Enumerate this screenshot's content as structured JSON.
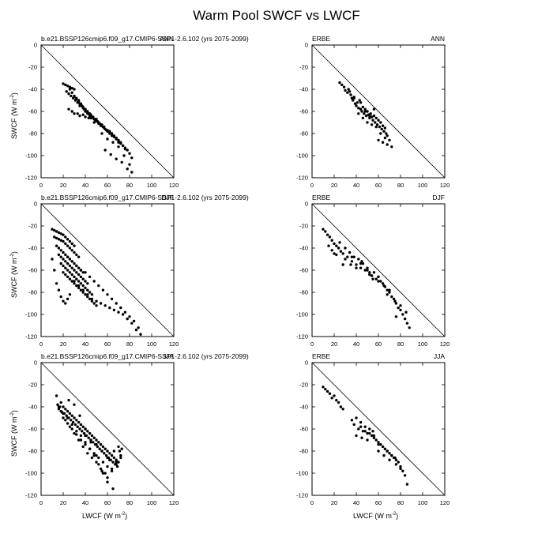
{
  "title": "Warm Pool SWCF vs LWCF",
  "axes": {
    "xlabel": "LWCF (W m",
    "ylabel": "SWCF (W m",
    "unit_exponent": "-2",
    "xlabel_suffix": ")",
    "ylabel_suffix": ")"
  },
  "chart_data": [
    {
      "type": "scatter",
      "left_title": "b.e21.BSSP126cmip6.f09_g17.CMIP6-SSP1-2.6.102 (yrs 2075-2099)",
      "right_title": "ANN",
      "xlim": [
        0,
        120
      ],
      "ylim": [
        -120,
        0
      ],
      "xticks": [
        0,
        20,
        40,
        60,
        80,
        100,
        120
      ],
      "yticks": [
        0,
        -20,
        -40,
        -60,
        -80,
        -100,
        -120
      ],
      "reference_line": [
        [
          0,
          0
        ],
        [
          120,
          -120
        ]
      ],
      "x": [
        20,
        22,
        24,
        26,
        28,
        30,
        23,
        25,
        27,
        29,
        31,
        33,
        35,
        26,
        28,
        30,
        32,
        34,
        36,
        38,
        40,
        30,
        32,
        34,
        36,
        38,
        40,
        42,
        44,
        35,
        37,
        39,
        41,
        43,
        45,
        47,
        49,
        40,
        42,
        44,
        46,
        48,
        50,
        52,
        54,
        45,
        47,
        49,
        51,
        53,
        55,
        57,
        59,
        50,
        52,
        54,
        56,
        58,
        60,
        62,
        64,
        55,
        57,
        60,
        62,
        64,
        66,
        68,
        70,
        62,
        64,
        66,
        68,
        70,
        72,
        74,
        76,
        68,
        70,
        72,
        74,
        76,
        78,
        80,
        82,
        25,
        30,
        35,
        40,
        45,
        50,
        28,
        33,
        38,
        43,
        48,
        55,
        60,
        65,
        70,
        75,
        80,
        58,
        63,
        68,
        73,
        78,
        82
      ],
      "y": [
        -35,
        -36,
        -37,
        -38,
        -39,
        -40,
        -42,
        -44,
        -46,
        -48,
        -50,
        -52,
        -55,
        -40,
        -43,
        -46,
        -48,
        -50,
        -53,
        -56,
        -58,
        -47,
        -49,
        -51,
        -54,
        -57,
        -60,
        -62,
        -64,
        -53,
        -55,
        -58,
        -60,
        -62,
        -64,
        -66,
        -68,
        -58,
        -60,
        -62,
        -65,
        -67,
        -69,
        -71,
        -73,
        -63,
        -65,
        -67,
        -69,
        -71,
        -73,
        -75,
        -77,
        -67,
        -70,
        -72,
        -74,
        -76,
        -78,
        -80,
        -82,
        -72,
        -74,
        -77,
        -79,
        -81,
        -83,
        -85,
        -88,
        -78,
        -80,
        -82,
        -85,
        -87,
        -89,
        -91,
        -94,
        -84,
        -86,
        -88,
        -91,
        -93,
        -95,
        -98,
        -102,
        -58,
        -62,
        -64,
        -65,
        -66,
        -68,
        -60,
        -62,
        -63,
        -66,
        -70,
        -80,
        -85,
        -88,
        -92,
        -100,
        -108,
        -95,
        -99,
        -103,
        -106,
        -112,
        -115
      ]
    },
    {
      "type": "scatter",
      "left_title": "ERBE",
      "right_title": "ANN",
      "xlim": [
        0,
        120
      ],
      "ylim": [
        -120,
        0
      ],
      "xticks": [
        0,
        20,
        40,
        60,
        80,
        100,
        120
      ],
      "yticks": [
        0,
        -20,
        -40,
        -60,
        -80,
        -100,
        -120
      ],
      "reference_line": [
        [
          0,
          0
        ],
        [
          120,
          -120
        ]
      ],
      "x": [
        25,
        27,
        29,
        30,
        32,
        33,
        35,
        36,
        37,
        38,
        39,
        40,
        41,
        42,
        43,
        44,
        45,
        46,
        47,
        48,
        49,
        50,
        51,
        52,
        53,
        54,
        55,
        56,
        57,
        58,
        59,
        60,
        61,
        62,
        63,
        64,
        65,
        66,
        67,
        68,
        42,
        46,
        50,
        54,
        58,
        62,
        66,
        60,
        64,
        68,
        70,
        72,
        48,
        52,
        56,
        44,
        38,
        34
      ],
      "y": [
        -34,
        -36,
        -38,
        -41,
        -43,
        -40,
        -45,
        -48,
        -50,
        -47,
        -53,
        -55,
        -52,
        -57,
        -50,
        -58,
        -60,
        -56,
        -62,
        -58,
        -64,
        -60,
        -63,
        -66,
        -62,
        -65,
        -68,
        -64,
        -70,
        -66,
        -72,
        -68,
        -74,
        -70,
        -76,
        -73,
        -78,
        -75,
        -80,
        -82,
        -62,
        -66,
        -70,
        -72,
        -74,
        -80,
        -84,
        -86,
        -88,
        -90,
        -86,
        -92,
        -60,
        -64,
        -58,
        -52,
        -48,
        -42
      ]
    },
    {
      "type": "scatter",
      "left_title": "b.e21.BSSP126cmip6.f09_g17.CMIP6-SSP1-2.6.102 (yrs 2075-2099)",
      "right_title": "DJF",
      "xlim": [
        0,
        120
      ],
      "ylim": [
        -120,
        0
      ],
      "xticks": [
        0,
        20,
        40,
        60,
        80,
        100,
        120
      ],
      "yticks": [
        0,
        -20,
        -40,
        -60,
        -80,
        -100,
        -120
      ],
      "reference_line": [
        [
          0,
          0
        ],
        [
          120,
          -120
        ]
      ],
      "x": [
        10,
        12,
        14,
        16,
        18,
        20,
        22,
        24,
        26,
        28,
        30,
        12,
        14,
        16,
        18,
        20,
        22,
        24,
        26,
        28,
        30,
        32,
        34,
        14,
        16,
        18,
        20,
        22,
        24,
        26,
        28,
        30,
        32,
        34,
        36,
        38,
        16,
        18,
        20,
        22,
        24,
        26,
        28,
        30,
        32,
        34,
        36,
        38,
        40,
        42,
        18,
        20,
        22,
        24,
        26,
        28,
        30,
        32,
        34,
        36,
        38,
        40,
        42,
        44,
        46,
        20,
        22,
        24,
        26,
        28,
        30,
        32,
        34,
        36,
        38,
        40,
        42,
        44,
        46,
        48,
        50,
        24,
        28,
        32,
        36,
        40,
        44,
        48,
        52,
        56,
        60,
        64,
        68,
        72,
        76,
        80,
        84,
        88,
        30,
        34,
        38,
        42,
        46,
        50,
        54,
        58,
        62,
        66,
        70,
        74,
        78,
        82,
        86,
        90,
        16,
        18,
        20,
        22,
        24,
        26,
        14,
        12,
        10
      ],
      "y": [
        -23,
        -24,
        -25,
        -26,
        -27,
        -28,
        -30,
        -32,
        -34,
        -36,
        -38,
        -30,
        -31,
        -32,
        -33,
        -34,
        -36,
        -38,
        -40,
        -42,
        -44,
        -46,
        -48,
        -38,
        -40,
        -42,
        -44,
        -46,
        -48,
        -50,
        -52,
        -54,
        -56,
        -58,
        -60,
        -62,
        -46,
        -48,
        -50,
        -52,
        -54,
        -56,
        -58,
        -60,
        -62,
        -64,
        -66,
        -68,
        -70,
        -72,
        -54,
        -56,
        -58,
        -60,
        -62,
        -64,
        -66,
        -68,
        -70,
        -72,
        -74,
        -76,
        -78,
        -80,
        -82,
        -62,
        -64,
        -66,
        -68,
        -70,
        -72,
        -74,
        -76,
        -78,
        -80,
        -82,
        -84,
        -86,
        -88,
        -90,
        -92,
        -48,
        -52,
        -56,
        -60,
        -62,
        -66,
        -70,
        -74,
        -78,
        -82,
        -86,
        -90,
        -94,
        -98,
        -102,
        -106,
        -112,
        -70,
        -74,
        -78,
        -82,
        -86,
        -88,
        -90,
        -92,
        -94,
        -96,
        -98,
        -100,
        -104,
        -108,
        -114,
        -118,
        -78,
        -84,
        -88,
        -90,
        -86,
        -82,
        -72,
        -60,
        -50
      ]
    },
    {
      "type": "scatter",
      "left_title": "ERBE",
      "right_title": "DJF",
      "xlim": [
        0,
        120
      ],
      "ylim": [
        -120,
        0
      ],
      "xticks": [
        0,
        20,
        40,
        60,
        80,
        100,
        120
      ],
      "yticks": [
        0,
        -20,
        -40,
        -60,
        -80,
        -100,
        -120
      ],
      "reference_line": [
        [
          0,
          0
        ],
        [
          120,
          -120
        ]
      ],
      "x": [
        10,
        12,
        14,
        16,
        18,
        20,
        22,
        24,
        26,
        28,
        30,
        32,
        34,
        36,
        38,
        40,
        42,
        44,
        46,
        48,
        50,
        52,
        54,
        56,
        58,
        60,
        62,
        64,
        66,
        68,
        70,
        72,
        74,
        76,
        78,
        80,
        82,
        84,
        86,
        88,
        15,
        18,
        22,
        25,
        30,
        35,
        40,
        45,
        50,
        55,
        60,
        65,
        70,
        75,
        80,
        85,
        20,
        28,
        36,
        44,
        52,
        60,
        68,
        76
      ],
      "y": [
        -23,
        -25,
        -28,
        -30,
        -33,
        -36,
        -38,
        -40,
        -43,
        -45,
        -40,
        -48,
        -44,
        -52,
        -48,
        -55,
        -50,
        -58,
        -54,
        -60,
        -58,
        -62,
        -65,
        -62,
        -68,
        -66,
        -70,
        -72,
        -75,
        -78,
        -80,
        -84,
        -86,
        -90,
        -94,
        -96,
        -100,
        -104,
        -108,
        -112,
        -38,
        -42,
        -46,
        -35,
        -50,
        -55,
        -58,
        -52,
        -60,
        -68,
        -70,
        -74,
        -78,
        -88,
        -92,
        -98,
        -45,
        -55,
        -48,
        -54,
        -64,
        -66,
        -82,
        -102
      ]
    },
    {
      "type": "scatter",
      "left_title": "b.e21.BSSP126cmip6.f09_g17.CMIP6-SSP1-2.6.102 (yrs 2075-2099)",
      "right_title": "JJA",
      "xlim": [
        0,
        120
      ],
      "ylim": [
        -120,
        0
      ],
      "xticks": [
        0,
        20,
        40,
        60,
        80,
        100,
        120
      ],
      "yticks": [
        0,
        -20,
        -40,
        -60,
        -80,
        -100,
        -120
      ],
      "reference_line": [
        [
          0,
          0
        ],
        [
          120,
          -120
        ]
      ],
      "x": [
        14,
        15,
        16,
        17,
        18,
        19,
        20,
        21,
        22,
        23,
        24,
        25,
        26,
        27,
        28,
        29,
        30,
        31,
        32,
        33,
        34,
        35,
        36,
        37,
        38,
        39,
        40,
        41,
        42,
        43,
        44,
        45,
        46,
        47,
        48,
        49,
        50,
        51,
        52,
        53,
        54,
        55,
        56,
        57,
        58,
        59,
        60,
        61,
        62,
        63,
        64,
        65,
        66,
        67,
        68,
        69,
        70,
        71,
        72,
        73,
        20,
        24,
        28,
        32,
        36,
        40,
        44,
        48,
        52,
        56,
        60,
        64,
        68,
        72,
        18,
        22,
        26,
        30,
        34,
        38,
        42,
        46,
        50,
        54,
        58,
        62,
        66,
        70,
        16,
        20,
        24,
        28,
        32,
        36,
        40,
        44,
        48,
        52,
        56,
        60,
        64,
        68,
        25,
        30,
        35,
        40,
        45,
        50,
        55,
        60,
        65,
        40,
        45,
        50,
        55,
        60
      ],
      "y": [
        -30,
        -38,
        -42,
        -40,
        -36,
        -45,
        -40,
        -46,
        -42,
        -48,
        -44,
        -50,
        -46,
        -52,
        -48,
        -54,
        -50,
        -56,
        -52,
        -58,
        -54,
        -60,
        -56,
        -62,
        -58,
        -64,
        -60,
        -66,
        -62,
        -68,
        -64,
        -70,
        -66,
        -72,
        -68,
        -74,
        -70,
        -76,
        -72,
        -78,
        -74,
        -80,
        -76,
        -82,
        -78,
        -84,
        -80,
        -86,
        -82,
        -88,
        -84,
        -90,
        -86,
        -92,
        -88,
        -94,
        -90,
        -80,
        -86,
        -78,
        -50,
        -55,
        -60,
        -65,
        -70,
        -74,
        -78,
        -82,
        -86,
        -90,
        -94,
        -98,
        -92,
        -84,
        -44,
        -52,
        -58,
        -64,
        -70,
        -76,
        -82,
        -86,
        -90,
        -96,
        -100,
        -88,
        -80,
        -76,
        -40,
        -46,
        -50,
        -56,
        -62,
        -66,
        -72,
        -78,
        -84,
        -92,
        -100,
        -104,
        -96,
        -90,
        -34,
        -38,
        -48,
        -60,
        -72,
        -84,
        -98,
        -108,
        -114,
        -66,
        -70,
        -74,
        -80,
        -86
      ]
    },
    {
      "type": "scatter",
      "left_title": "ERBE",
      "right_title": "JJA",
      "xlim": [
        0,
        120
      ],
      "ylim": [
        -120,
        0
      ],
      "xticks": [
        0,
        20,
        40,
        60,
        80,
        100,
        120
      ],
      "yticks": [
        0,
        -20,
        -40,
        -60,
        -80,
        -100,
        -120
      ],
      "reference_line": [
        [
          0,
          0
        ],
        [
          120,
          -120
        ]
      ],
      "x": [
        10,
        12,
        14,
        16,
        18,
        20,
        22,
        24,
        26,
        28,
        36,
        38,
        40,
        42,
        44,
        46,
        48,
        50,
        52,
        54,
        56,
        58,
        60,
        62,
        64,
        66,
        68,
        70,
        72,
        74,
        76,
        78,
        80,
        82,
        84,
        86,
        40,
        45,
        50,
        55,
        60,
        65,
        70,
        75,
        44,
        48,
        52,
        56,
        60,
        64,
        68,
        72,
        76,
        80
      ],
      "y": [
        -22,
        -24,
        -26,
        -28,
        -32,
        -30,
        -34,
        -36,
        -40,
        -42,
        -52,
        -56,
        -50,
        -60,
        -54,
        -62,
        -58,
        -64,
        -60,
        -66,
        -68,
        -70,
        -72,
        -74,
        -76,
        -78,
        -80,
        -82,
        -84,
        -86,
        -88,
        -90,
        -94,
        -98,
        -102,
        -110,
        -66,
        -68,
        -70,
        -62,
        -80,
        -84,
        -88,
        -86,
        -58,
        -62,
        -64,
        -66,
        -74,
        -76,
        -80,
        -84,
        -92,
        -96
      ]
    }
  ]
}
